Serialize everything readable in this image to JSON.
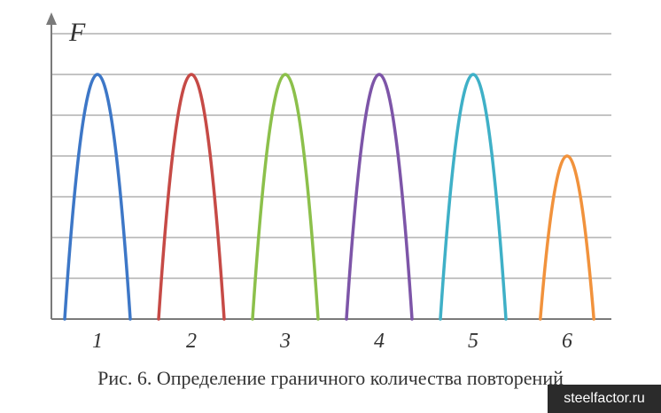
{
  "chart_data": {
    "type": "line",
    "ylabel": "F",
    "categories": [
      "1",
      "2",
      "3",
      "4",
      "5",
      "6"
    ],
    "values": [
      6,
      6,
      6,
      6,
      6,
      4
    ],
    "ylim": [
      0,
      7
    ],
    "grid": true,
    "colors": [
      "#3d77c7",
      "#c64a46",
      "#8cc04b",
      "#7d55a8",
      "#3fb0c7",
      "#f1923c"
    ]
  },
  "caption": "Рис. 6. Определение граничного количества повторений",
  "watermark": "steelfactor.ru"
}
